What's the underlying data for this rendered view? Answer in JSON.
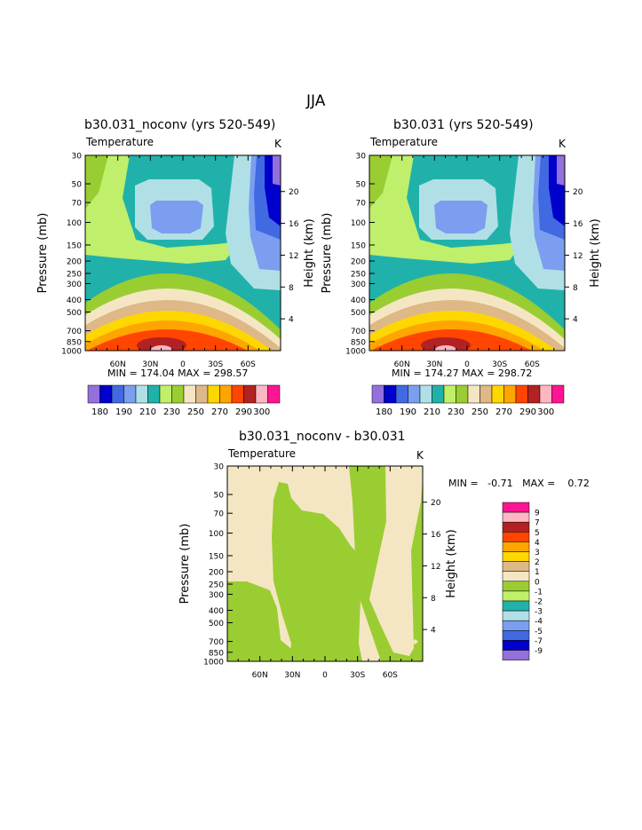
{
  "page": {
    "title": "JJA"
  },
  "colors": {
    "v180": "#9370db",
    "v185": "#0000cd",
    "v190": "#4169e1",
    "v195": "#7b9ef0",
    "v200": "#b0e0e6",
    "v210": "#20b2aa",
    "v220": "#c0ef6b",
    "v230": "#9acd32",
    "v240": "#f5e6c3",
    "v250": "#deb887",
    "v260": "#ffd700",
    "v270": "#ffa500",
    "v280": "#ff4500",
    "v290": "#b22222",
    "v300": "#ffb6c1",
    "v310": "#ff1493"
  },
  "chart_data": [
    {
      "type": "contour",
      "title": "b30.031_noconv (yrs 520-549)",
      "variable": "Temperature",
      "units": "K",
      "ylabel": "Pressure (mb)",
      "ylabel_right": "Height (km)",
      "pressure_ticks": [
        "30",
        "50",
        "70",
        "100",
        "150",
        "200",
        "250",
        "300",
        "400",
        "500",
        "700",
        "850",
        "1000"
      ],
      "height_ticks": [
        "20",
        "16",
        "12",
        "8",
        "4"
      ],
      "x_ticks": [
        "60N",
        "30N",
        "0",
        "30S",
        "60S"
      ],
      "stats": "MIN = 174.04   MAX = 298.57",
      "min": 174.04,
      "max": 298.57,
      "colorbar_labels": [
        "180",
        "190",
        "210",
        "230",
        "250",
        "270",
        "290",
        "300"
      ]
    },
    {
      "type": "contour",
      "title": "b30.031 (yrs 520-549)",
      "variable": "Temperature",
      "units": "K",
      "ylabel": "Pressure (mb)",
      "ylabel_right": "Height (km)",
      "pressure_ticks": [
        "30",
        "50",
        "70",
        "100",
        "150",
        "200",
        "250",
        "300",
        "400",
        "500",
        "700",
        "850",
        "1000"
      ],
      "height_ticks": [
        "20",
        "16",
        "12",
        "8",
        "4"
      ],
      "x_ticks": [
        "60N",
        "30N",
        "0",
        "30S",
        "60S"
      ],
      "stats": "MIN = 174.27   MAX = 298.72",
      "min": 174.27,
      "max": 298.72,
      "colorbar_labels": [
        "180",
        "190",
        "210",
        "230",
        "250",
        "270",
        "290",
        "300"
      ]
    },
    {
      "type": "contour",
      "title": "b30.031_noconv - b30.031",
      "variable": "Temperature",
      "units": "K",
      "ylabel": "Pressure (mb)",
      "ylabel_right": "Height (km)",
      "pressure_ticks": [
        "30",
        "50",
        "70",
        "100",
        "150",
        "200",
        "250",
        "300",
        "400",
        "500",
        "700",
        "850",
        "1000"
      ],
      "height_ticks": [
        "20",
        "16",
        "12",
        "8",
        "4"
      ],
      "x_ticks": [
        "60N",
        "30N",
        "0",
        "30S",
        "60S"
      ],
      "stats": "MIN =   -0.71   MAX =    0.72",
      "min": -0.71,
      "max": 0.72,
      "colorbar_labels": [
        "9",
        "7",
        "5",
        "4",
        "3",
        "2",
        "1",
        "0",
        "-1",
        "-2",
        "-3",
        "-4",
        "-5",
        "-7",
        "-9"
      ]
    }
  ]
}
